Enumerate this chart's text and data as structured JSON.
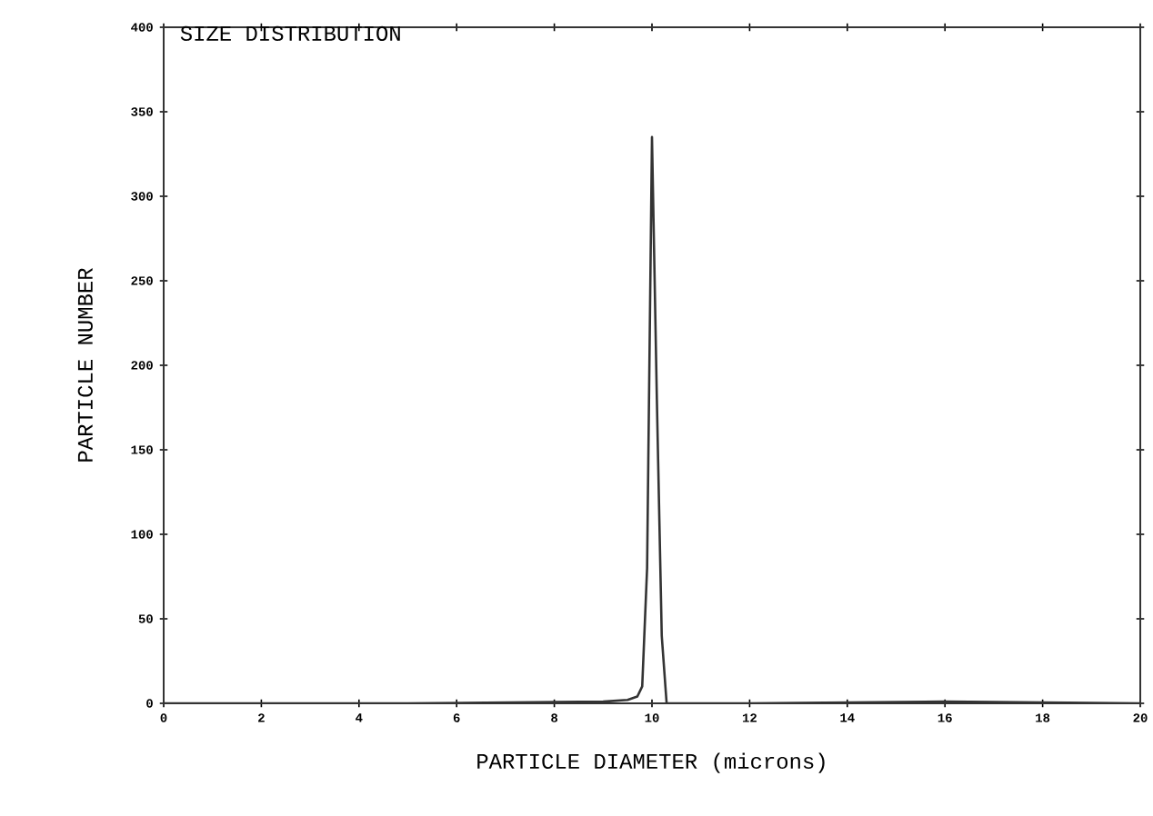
{
  "chart_data": {
    "type": "line",
    "title": "SIZE DISTRIBUTION",
    "xlabel": "PARTICLE DIAMETER (microns)",
    "ylabel": "PARTICLE NUMBER",
    "x": [
      0,
      5,
      9.0,
      9.5,
      9.7,
      9.8,
      9.9,
      10.0,
      10.1,
      10.2,
      10.3,
      12,
      16,
      20
    ],
    "series": [
      {
        "color": "#333333",
        "values": [
          0,
          0,
          1,
          2,
          4,
          10,
          80,
          335,
          180,
          40,
          0,
          0,
          1,
          0
        ]
      }
    ],
    "xlim": [
      0,
      20
    ],
    "ylim": [
      0,
      400
    ],
    "xticks": [
      0,
      2,
      4,
      6,
      8,
      10,
      12,
      14,
      16,
      18,
      20
    ],
    "yticks": [
      0,
      50,
      100,
      150,
      200,
      250,
      300,
      350,
      400
    ],
    "grid": false,
    "marker": "none",
    "line_style": "solid"
  }
}
